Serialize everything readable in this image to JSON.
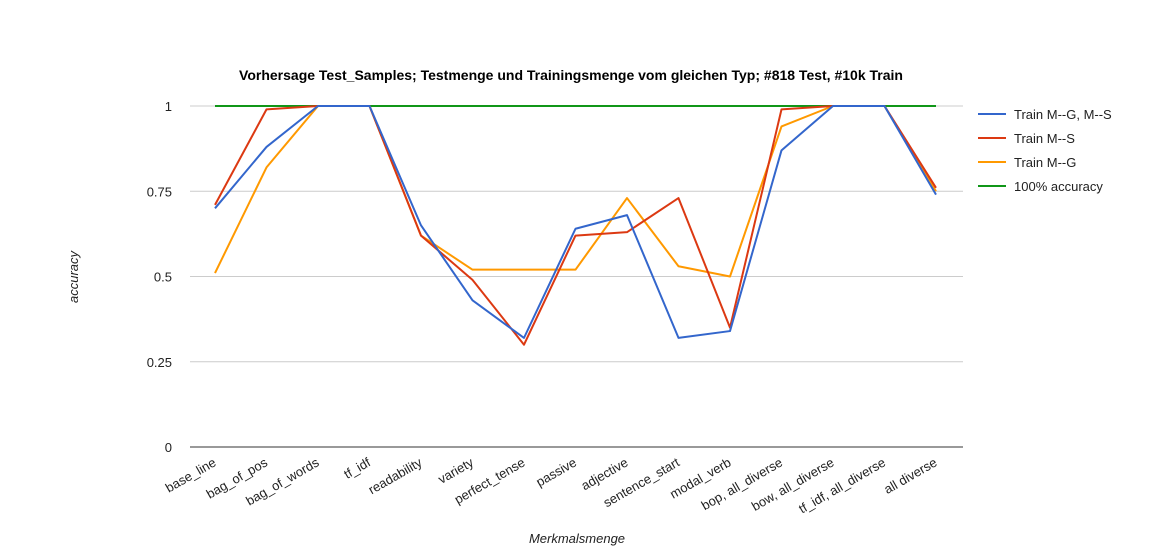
{
  "chart_data": {
    "type": "line",
    "title": "Vorhersage Test_Samples; Testmenge und Trainingsmenge vom gleichen Typ; #818 Test, #10k Train",
    "xlabel": "Merkmalsmenge",
    "ylabel": "accuracy",
    "ylim": [
      0,
      1
    ],
    "yticks": [
      "0",
      "0.25",
      "0.5",
      "0.75",
      "1"
    ],
    "ytick_values": [
      0,
      0.25,
      0.5,
      0.75,
      1
    ],
    "grid": true,
    "legend_position": "right",
    "categories": [
      "base_line",
      "bag_of_pos",
      "bag_of_words",
      "tf_idf",
      "readability",
      "variety",
      "perfect_tense",
      "passive",
      "adjective",
      "sentence_start",
      "modal_verb",
      "bop, all_diverse",
      "bow, all_diverse",
      "tf_idf, all_diverse",
      "all diverse"
    ],
    "series": [
      {
        "name": "Train M--G, M--S",
        "color": "#3366cc",
        "values": [
          0.7,
          0.88,
          1.0,
          1.0,
          0.65,
          0.43,
          0.32,
          0.64,
          0.68,
          0.32,
          0.34,
          0.87,
          1.0,
          1.0,
          0.74
        ]
      },
      {
        "name": "Train M--S",
        "color": "#dc3912",
        "values": [
          0.71,
          0.99,
          1.0,
          1.0,
          0.62,
          0.49,
          0.3,
          0.62,
          0.63,
          0.73,
          0.35,
          0.99,
          1.0,
          1.0,
          0.76
        ]
      },
      {
        "name": "Train M--G",
        "color": "#ff9900",
        "values": [
          0.51,
          0.82,
          1.0,
          1.0,
          0.62,
          0.52,
          0.52,
          0.52,
          0.73,
          0.53,
          0.5,
          0.94,
          1.0,
          1.0,
          0.75
        ]
      },
      {
        "name": "100% accuracy",
        "color": "#109618",
        "values": [
          1,
          1,
          1,
          1,
          1,
          1,
          1,
          1,
          1,
          1,
          1,
          1,
          1,
          1,
          1
        ]
      }
    ]
  }
}
